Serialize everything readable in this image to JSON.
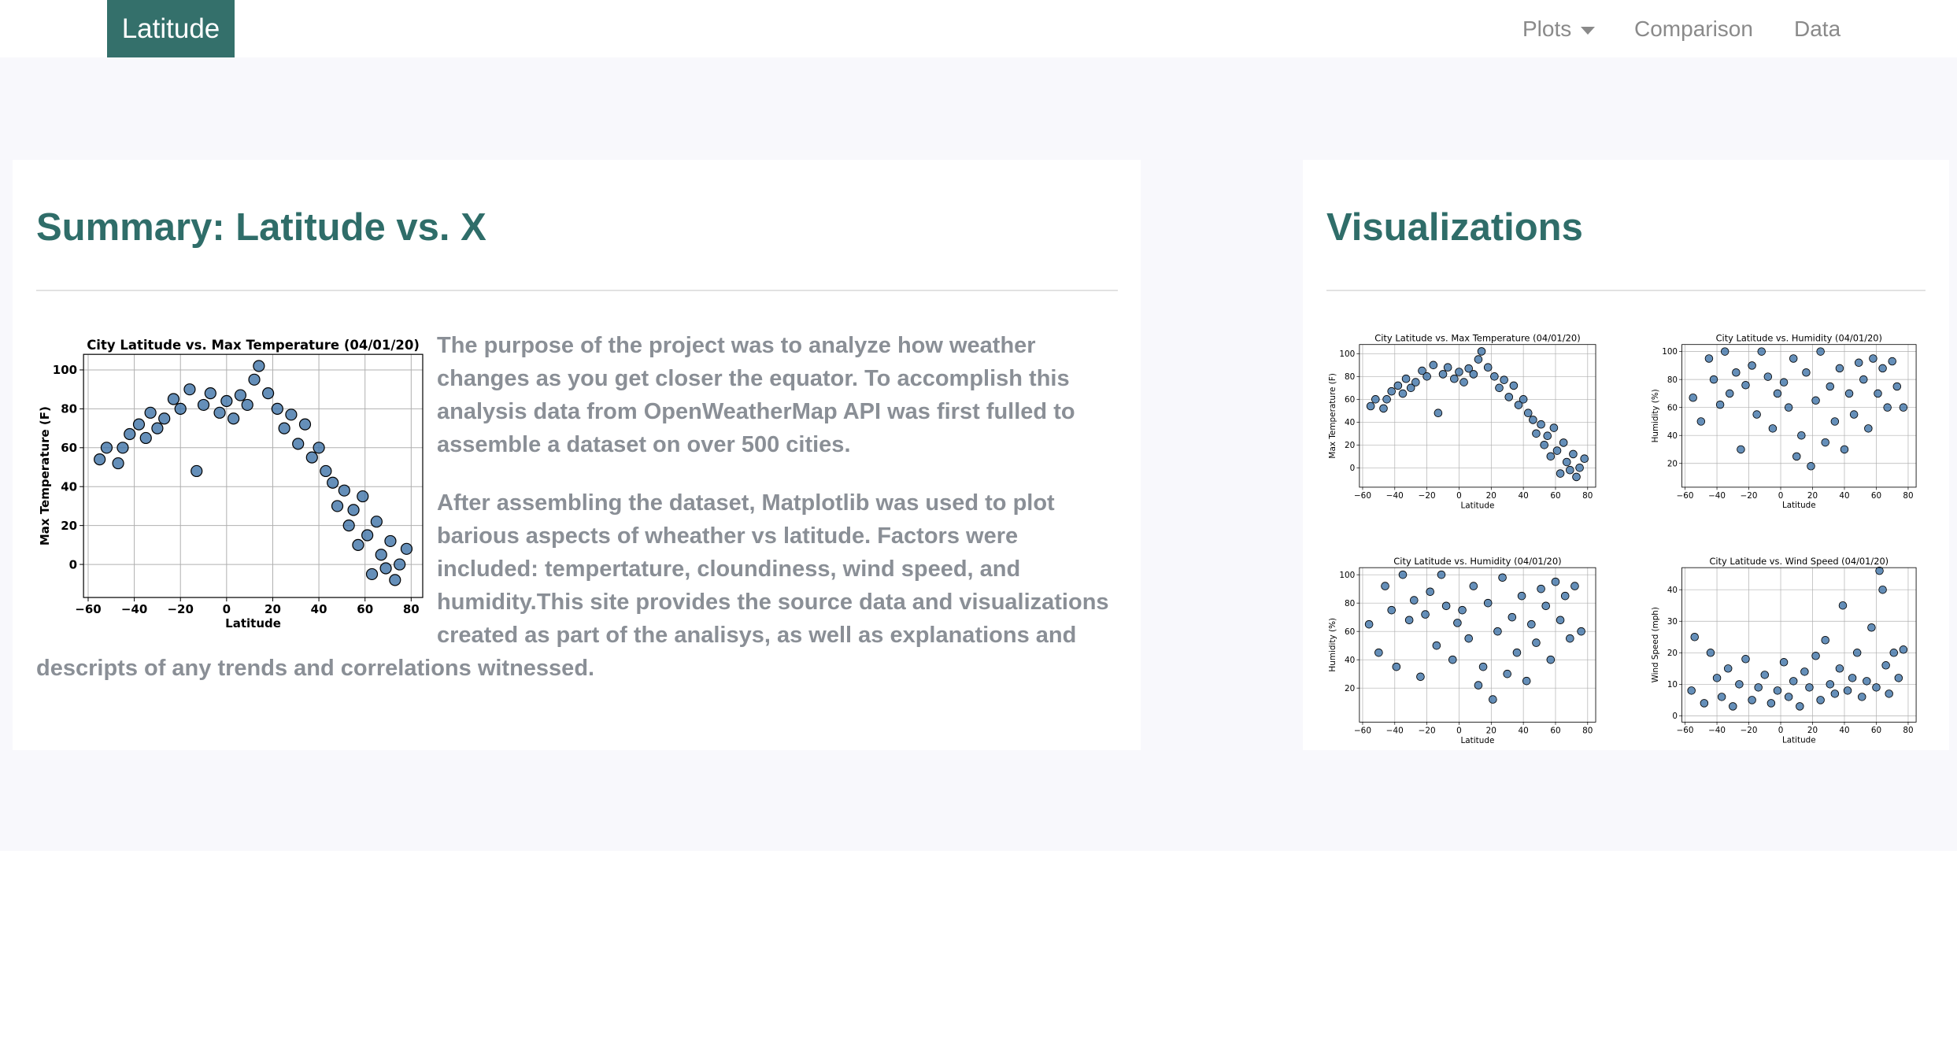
{
  "navbar": {
    "brand": "Latitude",
    "links": [
      "Plots",
      "Comparison",
      "Data"
    ]
  },
  "summary": {
    "title": "Summary: Latitude vs. X",
    "paragraphs": [
      "The purpose of the project was to analyze how weather changes as you get closer the equator. To accomplish this analysis data from OpenWeatherMap API was first fulled to assemble a dataset on over 500 cities.",
      "After assembling the dataset, Matplotlib was used to plot barious aspects of wheather vs latitude. Factors were included: tempertature, cloundiness, wind speed, and humidity.This site provides the source data and visualizations created as part of the analisys, as well as explanations and descripts of any trends and correlations witnessed."
    ]
  },
  "visualizations": {
    "title": "Visualizations"
  },
  "chart_data": [
    {
      "type": "scatter",
      "title": "City Latitude vs. Max Temperature (04/01/20)",
      "x_label": "Latitude",
      "y_label": "Max Temperature (F)",
      "color": "#3f73a8",
      "xlim": [
        -62,
        85
      ],
      "ylim": [
        -17,
        108
      ],
      "xticks": [
        {
          "value": -60,
          "label": "−60"
        },
        {
          "value": -40,
          "label": "−40"
        },
        {
          "value": -20,
          "label": "−20"
        },
        0,
        20,
        40,
        60,
        80
      ],
      "yticks": [
        0,
        20,
        40,
        60,
        80,
        100
      ],
      "x": [
        -55,
        -52,
        -47,
        -45,
        -42,
        -38,
        -35,
        -33,
        -30,
        -27,
        -23,
        -20,
        -16,
        -13,
        -10,
        -7,
        -3,
        0,
        3,
        6,
        9,
        12,
        14,
        18,
        22,
        25,
        28,
        31,
        34,
        37,
        40,
        43,
        46,
        48,
        51,
        53,
        55,
        57,
        59,
        61,
        63,
        65,
        67,
        69,
        71,
        73,
        75,
        78
      ],
      "y": [
        54,
        60,
        52,
        60,
        67,
        72,
        65,
        78,
        70,
        75,
        85,
        80,
        90,
        48,
        82,
        88,
        78,
        84,
        75,
        87,
        82,
        95,
        102,
        88,
        80,
        70,
        77,
        62,
        72,
        55,
        60,
        48,
        42,
        30,
        38,
        20,
        28,
        10,
        35,
        15,
        -5,
        22,
        5,
        -2,
        12,
        -8,
        0,
        8
      ]
    },
    {
      "type": "scatter",
      "title": "City Latitude vs. Max Temperature (04/01/20)",
      "x_label": "Latitude",
      "y_label": "Max Temperature (F)",
      "color": "#3f73a8",
      "xlim": [
        -62,
        85
      ],
      "ylim": [
        -17,
        108
      ],
      "xticks": [
        {
          "value": -60,
          "label": "−60"
        },
        {
          "value": -40,
          "label": "−40"
        },
        {
          "value": -20,
          "label": "−20"
        },
        0,
        20,
        40,
        60,
        80
      ],
      "yticks": [
        0,
        20,
        40,
        60,
        80,
        100
      ],
      "x": [
        -55,
        -52,
        -47,
        -45,
        -42,
        -38,
        -35,
        -33,
        -30,
        -27,
        -23,
        -20,
        -16,
        -13,
        -10,
        -7,
        -3,
        0,
        3,
        6,
        9,
        12,
        14,
        18,
        22,
        25,
        28,
        31,
        34,
        37,
        40,
        43,
        46,
        48,
        51,
        53,
        55,
        57,
        59,
        61,
        63,
        65,
        67,
        69,
        71,
        73,
        75,
        78
      ],
      "y": [
        54,
        60,
        52,
        60,
        67,
        72,
        65,
        78,
        70,
        75,
        85,
        80,
        90,
        48,
        82,
        88,
        78,
        84,
        75,
        87,
        82,
        95,
        102,
        88,
        80,
        70,
        77,
        62,
        72,
        55,
        60,
        48,
        42,
        30,
        38,
        20,
        28,
        10,
        35,
        15,
        -5,
        22,
        5,
        -2,
        12,
        -8,
        0,
        8
      ]
    },
    {
      "type": "scatter",
      "title": "City Latitude vs. Humidity (04/01/20)",
      "x_label": "Latitude",
      "y_label": "Humidity (%)",
      "color": "#3f73a8",
      "xlim": [
        -62,
        85
      ],
      "ylim": [
        3,
        105
      ],
      "xticks": [
        {
          "value": -60,
          "label": "−60"
        },
        {
          "value": -40,
          "label": "−40"
        },
        {
          "value": -20,
          "label": "−20"
        },
        0,
        20,
        40,
        60,
        80
      ],
      "yticks": [
        20,
        40,
        60,
        80,
        100
      ],
      "x": [
        -55,
        -50,
        -45,
        -42,
        -38,
        -35,
        -32,
        -28,
        -25,
        -22,
        -18,
        -15,
        -12,
        -8,
        -5,
        -2,
        2,
        5,
        8,
        10,
        13,
        16,
        19,
        22,
        25,
        28,
        31,
        34,
        37,
        40,
        43,
        46,
        49,
        52,
        55,
        58,
        61,
        64,
        67,
        70,
        73,
        77
      ],
      "y": [
        67,
        50,
        95,
        80,
        62,
        100,
        70,
        85,
        30,
        76,
        90,
        55,
        100,
        82,
        45,
        70,
        78,
        60,
        95,
        25,
        40,
        85,
        18,
        65,
        100,
        35,
        75,
        50,
        88,
        30,
        70,
        55,
        92,
        80,
        45,
        95,
        70,
        88,
        60,
        93,
        75,
        60
      ]
    },
    {
      "type": "scatter",
      "title": "City Latitude vs. Humidity (04/01/20)",
      "x_label": "Latitude",
      "y_label": "Humidity (%)",
      "color": "#3f73a8",
      "xlim": [
        -62,
        85
      ],
      "ylim": [
        -4,
        105
      ],
      "xticks": [
        {
          "value": -60,
          "label": "−60"
        },
        {
          "value": -40,
          "label": "−40"
        },
        {
          "value": -20,
          "label": "−20"
        },
        0,
        20,
        40,
        60,
        80
      ],
      "yticks": [
        20,
        40,
        60,
        80,
        100
      ],
      "x": [
        -56,
        -50,
        -46,
        -42,
        -39,
        -35,
        -31,
        -28,
        -24,
        -21,
        -18,
        -14,
        -11,
        -8,
        -4,
        -1,
        2,
        6,
        9,
        12,
        15,
        18,
        21,
        24,
        27,
        30,
        33,
        36,
        39,
        42,
        45,
        48,
        51,
        54,
        57,
        60,
        63,
        66,
        69,
        72,
        76
      ],
      "y": [
        65,
        45,
        92,
        75,
        35,
        100,
        68,
        82,
        28,
        72,
        88,
        50,
        100,
        78,
        40,
        66,
        75,
        55,
        92,
        22,
        35,
        80,
        12,
        60,
        98,
        30,
        70,
        45,
        85,
        25,
        65,
        52,
        90,
        78,
        40,
        95,
        68,
        85,
        55,
        92,
        60
      ]
    },
    {
      "type": "scatter",
      "title": "City Latitude vs. Wind Speed (04/01/20)",
      "x_label": "Latitude",
      "y_label": "Wind Speed (mph)",
      "color": "#3f73a8",
      "xlim": [
        -62,
        85
      ],
      "ylim": [
        -2,
        47
      ],
      "xticks": [
        {
          "value": -60,
          "label": "−60"
        },
        {
          "value": -40,
          "label": "−40"
        },
        {
          "value": -20,
          "label": "−20"
        },
        0,
        20,
        40,
        60,
        80
      ],
      "yticks": [
        0,
        10,
        20,
        30,
        40
      ],
      "x": [
        -56,
        -54,
        -48,
        -44,
        -40,
        -37,
        -33,
        -30,
        -26,
        -22,
        -18,
        -14,
        -10,
        -6,
        -2,
        2,
        5,
        8,
        12,
        15,
        18,
        22,
        25,
        28,
        31,
        34,
        37,
        39,
        42,
        45,
        48,
        51,
        54,
        57,
        60,
        62,
        64,
        66,
        68,
        71,
        74,
        77
      ],
      "y": [
        8,
        25,
        4,
        20,
        12,
        6,
        15,
        3,
        10,
        18,
        5,
        9,
        13,
        4,
        8,
        17,
        6,
        11,
        3,
        14,
        9,
        19,
        5,
        24,
        10,
        7,
        15,
        35,
        8,
        12,
        20,
        6,
        11,
        28,
        9,
        46,
        40,
        16,
        7,
        20,
        12,
        21
      ]
    }
  ]
}
